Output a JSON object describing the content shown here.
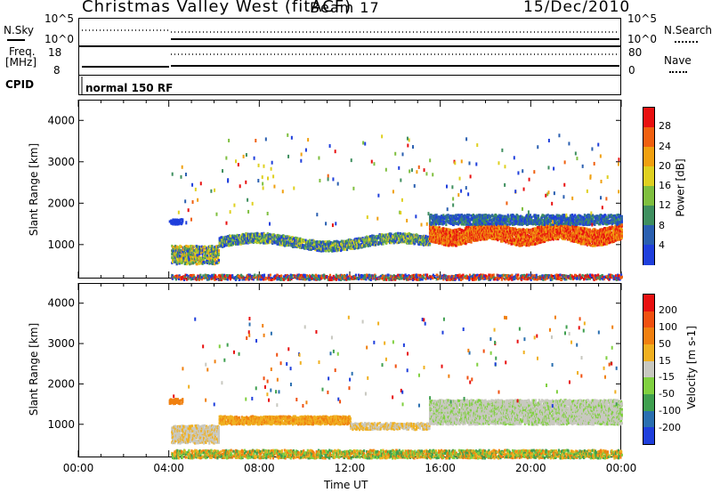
{
  "header": {
    "station": "Christmas Valley West (fitACF)",
    "beam": "Beam 17",
    "date": "15/Dec/2010"
  },
  "strips": {
    "nsky_label": "N.Sky",
    "nsky_ticks": [
      "10^5",
      "10^0"
    ],
    "nsearch_label": "N.Search",
    "nsearch_ticks": [
      "10^5",
      "10^0"
    ],
    "freq_label": "Freq.",
    "freq_unit": "[MHz]",
    "freq_ticks": [
      "18",
      "8"
    ],
    "nave_label": "Nave",
    "nave_ticks": [
      "80",
      "0"
    ],
    "cpid_label": "CPID",
    "cpid_value": "normal 150 RF"
  },
  "chart_data": [
    {
      "type": "heatmap",
      "name": "power",
      "ylabel": "Slant Range [km]",
      "xlabel": "",
      "ylim": [
        180,
        4500
      ],
      "yticks": [
        "1000",
        "2000",
        "3000",
        "4000"
      ],
      "colorbar": {
        "label": "Power [dB]",
        "ticks": [
          "4",
          "8",
          "12",
          "16",
          "20",
          "24",
          "28"
        ],
        "colors": [
          "#1f3fdc",
          "#2a5fb0",
          "#3f8f5f",
          "#7fbf3f",
          "#dfd020",
          "#f0a010",
          "#f06010",
          "#e81010"
        ]
      }
    },
    {
      "type": "heatmap",
      "name": "velocity",
      "ylabel": "Slant Range [km]",
      "xlabel": "Time UT",
      "ylim": [
        180,
        4500
      ],
      "yticks": [
        "1000",
        "2000",
        "3000",
        "4000"
      ],
      "xticks": [
        "00:00",
        "04:00",
        "08:00",
        "12:00",
        "16:00",
        "20:00",
        "00:00"
      ],
      "colorbar": {
        "label": "Velocity [m s-1]",
        "ticks": [
          "200",
          "100",
          "50",
          "15",
          "-15",
          "-50",
          "-100",
          "-200"
        ],
        "colors": [
          "#1f3fdc",
          "#2a6fb0",
          "#3f9f4f",
          "#80d040",
          "#c8c8c0",
          "#f0b020",
          "#f08010",
          "#f05010",
          "#e81010"
        ]
      }
    }
  ]
}
